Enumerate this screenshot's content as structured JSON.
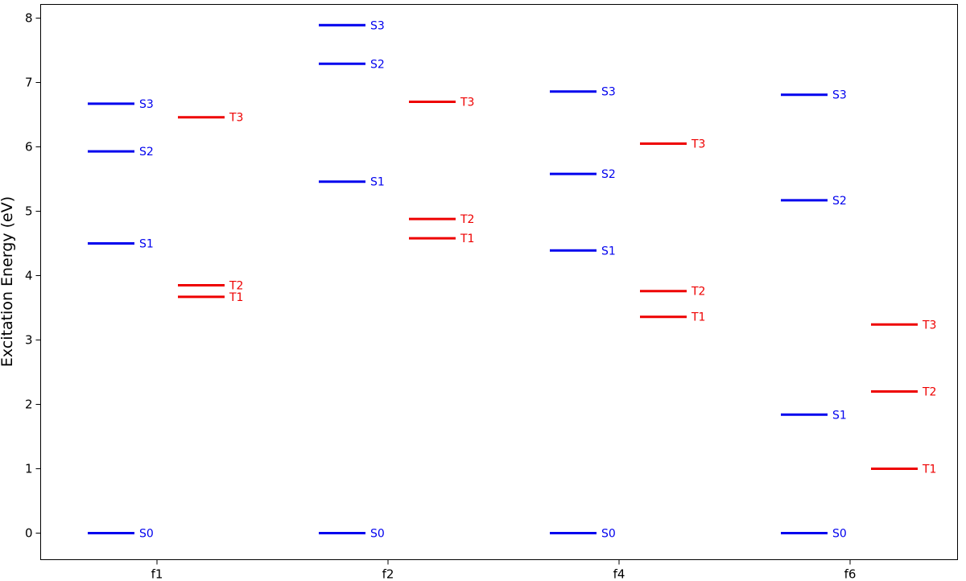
{
  "chart_data": {
    "type": "energy-level-diagram",
    "title": "",
    "xlabel": "",
    "ylabel": "Excitation Energy (eV)",
    "ylim": [
      -0.42,
      8.3
    ],
    "yticks": [
      0,
      1,
      2,
      3,
      4,
      5,
      6,
      7,
      8
    ],
    "grid": false,
    "legend": "none",
    "colors": {
      "singlet": "#0000ee",
      "triplet": "#ee0000"
    },
    "categories": [
      "f1",
      "f2",
      "f4",
      "f6"
    ],
    "molecules": [
      {
        "name": "f1",
        "singlets": [
          {
            "label": "S0",
            "energy": 0.0
          },
          {
            "label": "S1",
            "energy": 4.5
          },
          {
            "label": "S2",
            "energy": 5.93
          },
          {
            "label": "S3",
            "energy": 6.67
          }
        ],
        "triplets": [
          {
            "label": "T1",
            "energy": 3.67
          },
          {
            "label": "T2",
            "energy": 3.85
          },
          {
            "label": "T3",
            "energy": 6.46
          }
        ]
      },
      {
        "name": "f2",
        "singlets": [
          {
            "label": "S0",
            "energy": 0.0
          },
          {
            "label": "S1",
            "energy": 5.46
          },
          {
            "label": "S2",
            "energy": 7.29
          },
          {
            "label": "S3",
            "energy": 7.89
          }
        ],
        "triplets": [
          {
            "label": "T1",
            "energy": 4.58
          },
          {
            "label": "T2",
            "energy": 4.88
          },
          {
            "label": "T3",
            "energy": 6.7
          }
        ]
      },
      {
        "name": "f4",
        "singlets": [
          {
            "label": "S0",
            "energy": 0.0
          },
          {
            "label": "S1",
            "energy": 4.39
          },
          {
            "label": "S2",
            "energy": 5.58
          },
          {
            "label": "S3",
            "energy": 6.86
          }
        ],
        "triplets": [
          {
            "label": "T1",
            "energy": 3.36
          },
          {
            "label": "T2",
            "energy": 3.76
          },
          {
            "label": "T3",
            "energy": 6.05
          }
        ]
      },
      {
        "name": "f6",
        "singlets": [
          {
            "label": "S0",
            "energy": 0.0
          },
          {
            "label": "S1",
            "energy": 1.84
          },
          {
            "label": "S2",
            "energy": 5.17
          },
          {
            "label": "S3",
            "energy": 6.81
          }
        ],
        "triplets": [
          {
            "label": "T1",
            "energy": 1.0
          },
          {
            "label": "T2",
            "energy": 2.2
          },
          {
            "label": "T3",
            "energy": 3.24
          }
        ]
      }
    ]
  }
}
